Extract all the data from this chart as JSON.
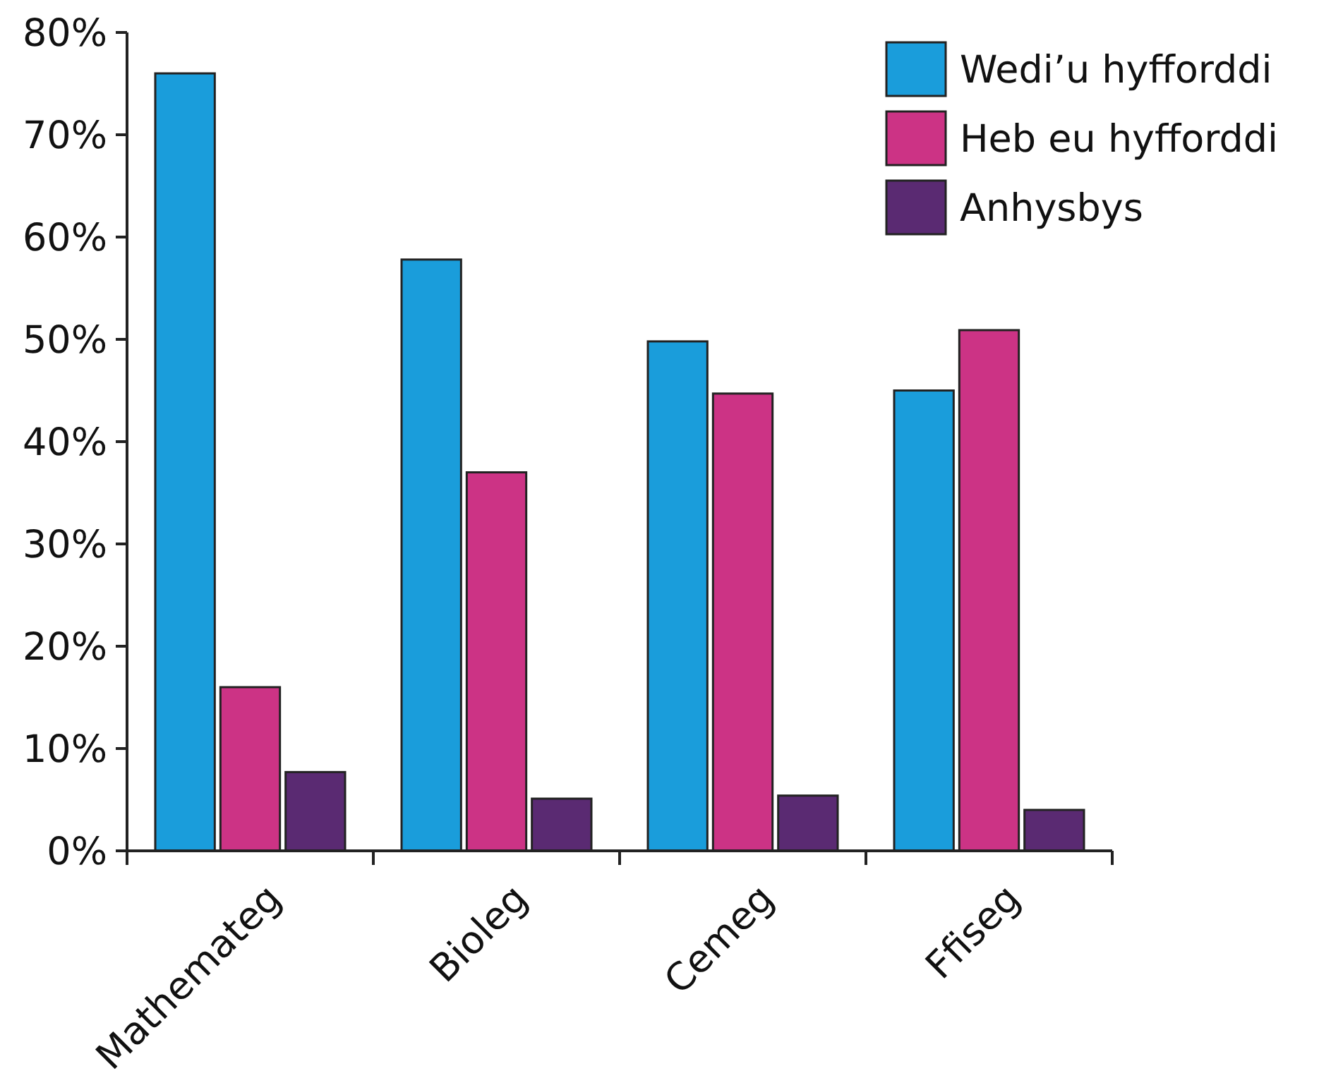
{
  "chart_data": {
    "type": "bar",
    "categories": [
      "Mathemateg",
      "Bioleg",
      "Cemeg",
      "Ffiseg"
    ],
    "series": [
      {
        "name": "Wedi’u hyfforddi",
        "color": "#1a9ddb",
        "values": [
          76,
          57.8,
          49.8,
          45
        ]
      },
      {
        "name": "Heb eu hyfforddi",
        "color": "#cc3385",
        "values": [
          16,
          37,
          44.7,
          50.9
        ]
      },
      {
        "name": "Anhysbys",
        "color": "#5a2a72",
        "values": [
          7.7,
          5.1,
          5.4,
          4
        ]
      }
    ],
    "ylim": [
      0,
      80
    ],
    "yticks": [
      {
        "value": 0,
        "label": "0%"
      },
      {
        "value": 10,
        "label": "10%"
      },
      {
        "value": 20,
        "label": "20%"
      },
      {
        "value": 30,
        "label": "30%"
      },
      {
        "value": 40,
        "label": "40%"
      },
      {
        "value": 50,
        "label": "50%"
      },
      {
        "value": 60,
        "label": "60%"
      },
      {
        "value": 70,
        "label": "70%"
      },
      {
        "value": 80,
        "label": "80%"
      }
    ],
    "grid": false,
    "legend": "top right"
  }
}
